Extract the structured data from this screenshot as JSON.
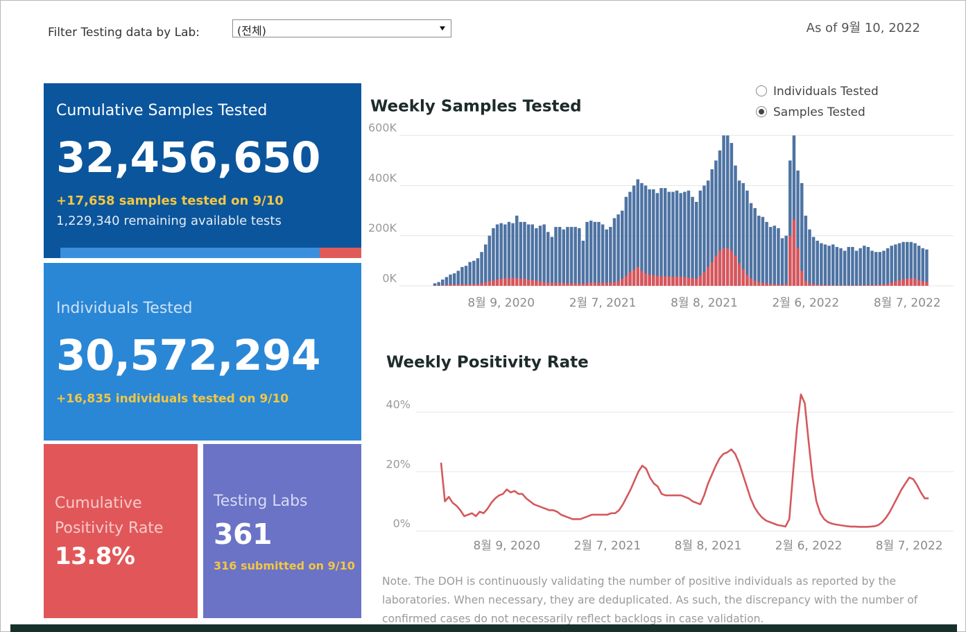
{
  "filter": {
    "label": "Filter Testing data by Lab:",
    "selected": "(전체)"
  },
  "as_of": "As of 9월 10, 2022",
  "cards": [
    {
      "title": "Cumulative Samples Tested",
      "value": "32,456,650",
      "lines": [
        "+17,658 samples tested on 9/10",
        "1,229,340 remaining available tests"
      ]
    },
    {
      "title": "Individuals Tested",
      "value": "30,572,294",
      "lines": [
        "+16,835  individuals  tested on 9/10"
      ]
    },
    {
      "title": "Cumulative Positivity Rate",
      "value": "13.8%",
      "lines": []
    },
    {
      "title": "Testing Labs",
      "value": "361",
      "lines": [
        "316 submitted on 9/10"
      ]
    }
  ],
  "toggle": {
    "options": [
      "Individuals Tested",
      "Samples Tested"
    ],
    "checked": [
      false,
      true
    ]
  },
  "note": "Note. The DOH is continuously validating the number of positive individuals as reported by the laboratories. When necessary, they are deduplicated. As such, the discrepancy with the number of confirmed cases do not necessarily reflect backlogs in case validation.",
  "chart_data": [
    {
      "type": "bar",
      "title": "Weekly Samples Tested",
      "bar_mode": "overlay",
      "grid": true,
      "categories": [
        null,
        null,
        null,
        null,
        null,
        null,
        null,
        null,
        null,
        null,
        null,
        null,
        null,
        null,
        null,
        null,
        null,
        "8월 9, 2020",
        null,
        null,
        null,
        null,
        null,
        null,
        null,
        null,
        null,
        null,
        null,
        null,
        null,
        null,
        null,
        null,
        null,
        null,
        null,
        null,
        null,
        null,
        null,
        null,
        null,
        "2월 7, 2021",
        null,
        null,
        null,
        null,
        null,
        null,
        null,
        null,
        null,
        null,
        null,
        null,
        null,
        null,
        null,
        null,
        null,
        null,
        null,
        null,
        null,
        null,
        null,
        null,
        null,
        "8월 8, 2021",
        null,
        null,
        null,
        null,
        null,
        null,
        null,
        null,
        null,
        null,
        null,
        null,
        null,
        null,
        null,
        null,
        null,
        null,
        null,
        null,
        null,
        null,
        null,
        null,
        null,
        "2월 6, 2022",
        null,
        null,
        null,
        null,
        null,
        null,
        null,
        null,
        null,
        null,
        null,
        null,
        null,
        null,
        null,
        null,
        null,
        null,
        null,
        null,
        null,
        null,
        null,
        null,
        null,
        "8월 7, 2022",
        null,
        null,
        null,
        null,
        null
      ],
      "ylim": [
        0,
        620000
      ],
      "yticks": [
        {
          "value": 0,
          "label": "0K"
        },
        {
          "value": 200000,
          "label": "200K"
        },
        {
          "value": 400000,
          "label": "400K"
        },
        {
          "value": 600000,
          "label": "600K"
        }
      ],
      "series": [
        {
          "color": "#4e73a3",
          "values": [
            10000,
            15000,
            25000,
            35000,
            45000,
            50000,
            60000,
            75000,
            80000,
            95000,
            100000,
            110000,
            135000,
            165000,
            200000,
            230000,
            245000,
            250000,
            245000,
            255000,
            250000,
            280000,
            255000,
            255000,
            245000,
            245000,
            230000,
            240000,
            245000,
            215000,
            195000,
            235000,
            235000,
            225000,
            235000,
            235000,
            235000,
            230000,
            180000,
            255000,
            260000,
            255000,
            255000,
            245000,
            225000,
            235000,
            270000,
            285000,
            300000,
            355000,
            375000,
            400000,
            425000,
            410000,
            400000,
            385000,
            385000,
            370000,
            390000,
            390000,
            375000,
            375000,
            380000,
            370000,
            375000,
            380000,
            355000,
            335000,
            380000,
            400000,
            420000,
            465000,
            500000,
            540000,
            600000,
            600000,
            570000,
            480000,
            420000,
            410000,
            380000,
            330000,
            310000,
            280000,
            275000,
            255000,
            235000,
            240000,
            230000,
            190000,
            200000,
            500000,
            600000,
            460000,
            410000,
            280000,
            225000,
            195000,
            180000,
            170000,
            165000,
            160000,
            165000,
            155000,
            150000,
            140000,
            155000,
            155000,
            140000,
            150000,
            160000,
            155000,
            140000,
            135000,
            135000,
            140000,
            150000,
            160000,
            165000,
            170000,
            175000,
            175000,
            175000,
            170000,
            160000,
            150000,
            145000
          ]
        },
        {
          "color": "#d9555a",
          "values": [
            1000,
            2000,
            3000,
            4000,
            5000,
            5000,
            5000,
            6000,
            6000,
            6000,
            7000,
            8000,
            10000,
            14000,
            18000,
            22000,
            25000,
            28000,
            30000,
            30000,
            32000,
            30000,
            28000,
            28000,
            25000,
            22000,
            20000,
            18000,
            15000,
            12000,
            12000,
            12000,
            12000,
            11000,
            10000,
            10000,
            10000,
            10000,
            8000,
            12000,
            13000,
            13000,
            12000,
            12000,
            12000,
            13000,
            15000,
            18000,
            28000,
            40000,
            55000,
            65000,
            75000,
            60000,
            50000,
            45000,
            42000,
            40000,
            38000,
            38000,
            37000,
            36000,
            37000,
            36000,
            34000,
            33000,
            30000,
            28000,
            40000,
            55000,
            75000,
            95000,
            120000,
            140000,
            150000,
            150000,
            140000,
            120000,
            90000,
            65000,
            45000,
            30000,
            20000,
            15000,
            12000,
            10000,
            8000,
            6000,
            5000,
            4000,
            8000,
            200000,
            265000,
            150000,
            60000,
            20000,
            10000,
            7000,
            5000,
            4000,
            3000,
            3000,
            3000,
            2000,
            2000,
            2000,
            2000,
            2000,
            2000,
            3000,
            3000,
            3000,
            3000,
            4000,
            5000,
            6000,
            8000,
            12000,
            18000,
            22000,
            26000,
            28000,
            30000,
            28000,
            22000,
            18000,
            15000
          ]
        }
      ]
    },
    {
      "type": "line",
      "title": "Weekly Positivity Rate",
      "grid": true,
      "categories": [
        null,
        null,
        null,
        null,
        null,
        null,
        null,
        null,
        null,
        null,
        null,
        null,
        null,
        null,
        null,
        null,
        null,
        "8월 9, 2020",
        null,
        null,
        null,
        null,
        null,
        null,
        null,
        null,
        null,
        null,
        null,
        null,
        null,
        null,
        null,
        null,
        null,
        null,
        null,
        null,
        null,
        null,
        null,
        null,
        null,
        "2월 7, 2021",
        null,
        null,
        null,
        null,
        null,
        null,
        null,
        null,
        null,
        null,
        null,
        null,
        null,
        null,
        null,
        null,
        null,
        null,
        null,
        null,
        null,
        null,
        null,
        null,
        null,
        "8월 8, 2021",
        null,
        null,
        null,
        null,
        null,
        null,
        null,
        null,
        null,
        null,
        null,
        null,
        null,
        null,
        null,
        null,
        null,
        null,
        null,
        null,
        null,
        null,
        null,
        null,
        null,
        "2월 6, 2022",
        null,
        null,
        null,
        null,
        null,
        null,
        null,
        null,
        null,
        null,
        null,
        null,
        null,
        null,
        null,
        null,
        null,
        null,
        null,
        null,
        null,
        null,
        null,
        null,
        null,
        "8월 7, 2022",
        null,
        null,
        null,
        null,
        null
      ],
      "ylim": [
        -2,
        48
      ],
      "yticks": [
        {
          "value": 0,
          "label": "0%"
        },
        {
          "value": 20,
          "label": "20%"
        },
        {
          "value": 40,
          "label": "40%"
        }
      ],
      "series": [
        {
          "color": "#d4585c",
          "values": [
            23,
            10,
            11.5,
            9.5,
            8.5,
            7,
            5,
            5.5,
            6,
            5,
            6.5,
            6,
            7.5,
            9.5,
            11,
            12,
            12.5,
            14,
            13,
            13.5,
            12.5,
            12.5,
            11,
            10,
            9,
            8.5,
            8,
            7.5,
            7,
            7,
            6.5,
            5.5,
            5,
            4.5,
            4,
            4,
            4,
            4.5,
            5,
            5.5,
            5.5,
            5.5,
            5.5,
            5.5,
            6,
            6,
            7,
            9,
            11.5,
            14,
            17,
            20,
            22,
            21,
            18,
            16,
            15,
            12.5,
            12,
            12,
            12,
            12,
            12,
            11.5,
            11,
            10,
            9.5,
            9,
            12,
            16,
            19,
            22,
            24.5,
            26,
            26.5,
            27.5,
            26,
            23,
            19,
            15,
            11,
            8,
            6,
            4.5,
            3.5,
            3,
            2.5,
            2,
            1.8,
            1.5,
            4,
            20,
            35,
            46,
            43,
            30,
            18,
            10,
            6,
            4,
            3,
            2.5,
            2.2,
            2,
            1.8,
            1.6,
            1.5,
            1.5,
            1.4,
            1.4,
            1.4,
            1.5,
            1.6,
            2,
            3,
            4.5,
            6.5,
            9,
            11.5,
            14,
            16,
            18,
            17.5,
            15.5,
            13,
            11,
            11
          ]
        }
      ]
    }
  ]
}
